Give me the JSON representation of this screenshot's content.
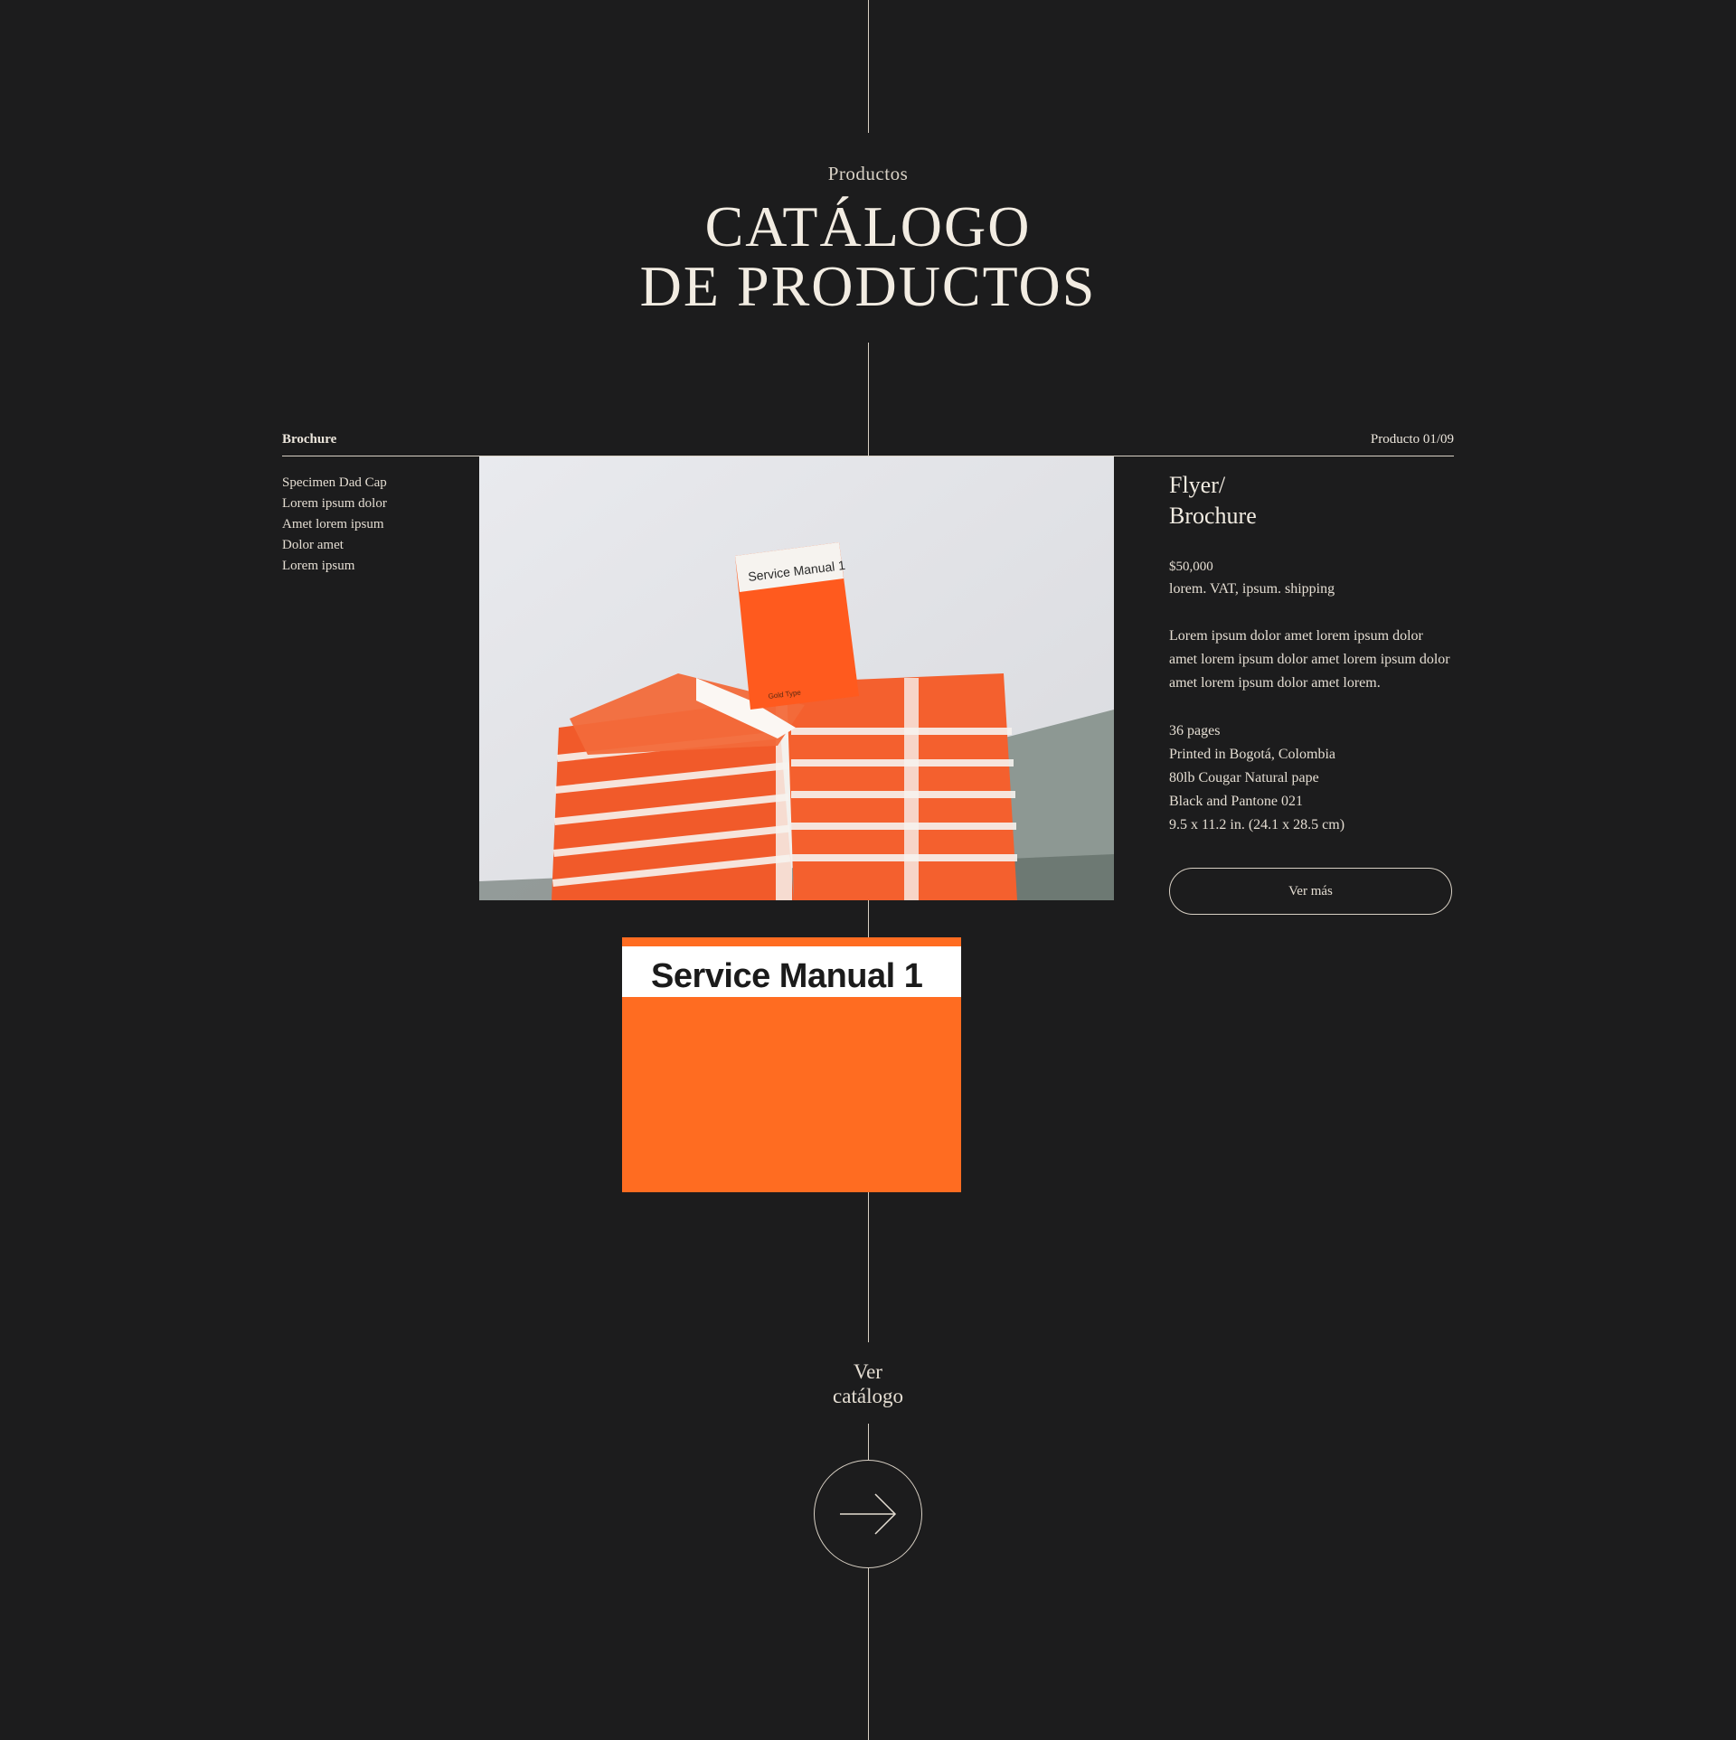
{
  "header": {
    "eyebrow": "Productos",
    "title_line1": "CATÁLOGO",
    "title_line2": "DE PRODUCTOS"
  },
  "category": {
    "label": "Brochure",
    "counter": "Producto 01/09",
    "items": [
      "Specimen Dad Cap",
      "Lorem ipsum dolor",
      "Amet lorem ipsum",
      "Dolor amet",
      "Lorem ipsum"
    ]
  },
  "product": {
    "name_line1": "Flyer/",
    "name_line2": "Brochure",
    "price": "$50,000",
    "price_note": "lorem. VAT, ipsum. shipping",
    "description": "Lorem ipsum dolor amet lorem ipsum dolor amet lorem ipsum dolor amet lorem ipsum dolor amet lorem ipsum dolor amet lorem.",
    "specs": [
      "36 pages",
      "Printed in Bogotá, Colombia",
      "80lb Cougar Natural pape",
      "Black and Pantone 021",
      "9.5 x 11.2 in. (24.1 x 28.5 cm)"
    ],
    "cta": "Ver más",
    "photo_label_front": "Service Manual 1",
    "photo_label_small": "Gold Type",
    "cover_title": "Service Manual 1"
  },
  "footer": {
    "ver_line1": "Ver",
    "ver_line2": "catálogo",
    "arrow_icon": "arrow-right-icon"
  },
  "colors": {
    "background": "#1c1c1d",
    "text": "#ece6dc",
    "accent_orange": "#ff6c21"
  }
}
